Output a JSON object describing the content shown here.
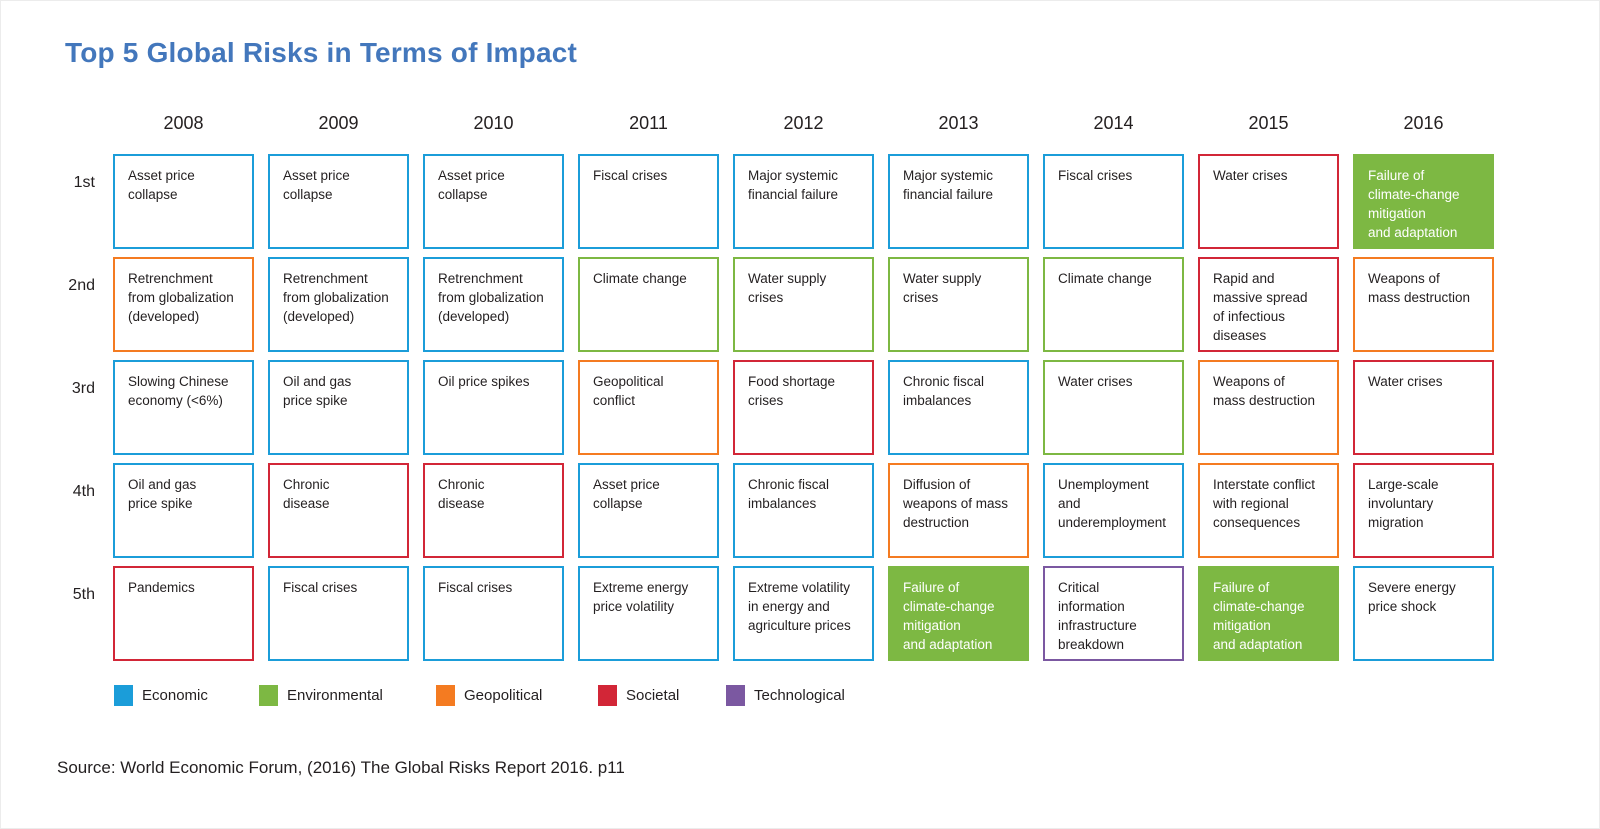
{
  "source": "Source: World Economic Forum, (2016) The Global Risks Report 2016. p11",
  "title_color": "#4377BC",
  "text_color": "#231F20",
  "categories": {
    "economic": {
      "label": "Economic",
      "color": "#1B9DD9"
    },
    "environmental": {
      "label": "Environmental",
      "color": "#7DB843"
    },
    "geopolitical": {
      "label": "Geopolitical",
      "color": "#F47B21"
    },
    "societal": {
      "label": "Societal",
      "color": "#D22637"
    },
    "technological": {
      "label": "Technological",
      "color": "#7B58A1"
    }
  },
  "legend_order": [
    "economic",
    "environmental",
    "geopolitical",
    "societal",
    "technological"
  ],
  "chart_data": {
    "type": "table",
    "title": "Top 5 Global Risks in Terms of Impact",
    "x_categories": [
      "2008",
      "2009",
      "2010",
      "2011",
      "2012",
      "2013",
      "2014",
      "2015",
      "2016"
    ],
    "y_categories": [
      "1st",
      "2nd",
      "3rd",
      "4th",
      "5th"
    ],
    "legend": [
      "Economic",
      "Environmental",
      "Geopolitical",
      "Societal",
      "Technological"
    ],
    "columns": [
      {
        "year": "2008",
        "cells": [
          {
            "text": "Asset price\ncollapse",
            "category": "economic"
          },
          {
            "text": "Retrenchment\nfrom globalization\n(developed)",
            "category": "geopolitical"
          },
          {
            "text": "Slowing Chinese\neconomy (<6%)",
            "category": "economic"
          },
          {
            "text": "Oil and gas\nprice spike",
            "category": "economic"
          },
          {
            "text": "Pandemics",
            "category": "societal"
          }
        ]
      },
      {
        "year": "2009",
        "cells": [
          {
            "text": "Asset price\ncollapse",
            "category": "economic"
          },
          {
            "text": "Retrenchment\nfrom globalization\n(developed)",
            "category": "economic"
          },
          {
            "text": "Oil and gas\nprice spike",
            "category": "economic"
          },
          {
            "text": "Chronic\ndisease",
            "category": "societal"
          },
          {
            "text": "Fiscal crises",
            "category": "economic"
          }
        ]
      },
      {
        "year": "2010",
        "cells": [
          {
            "text": "Asset price\ncollapse",
            "category": "economic"
          },
          {
            "text": "Retrenchment\nfrom globalization\n(developed)",
            "category": "economic"
          },
          {
            "text": "Oil price spikes",
            "category": "economic"
          },
          {
            "text": "Chronic\ndisease",
            "category": "societal"
          },
          {
            "text": "Fiscal crises",
            "category": "economic"
          }
        ]
      },
      {
        "year": "2011",
        "cells": [
          {
            "text": "Fiscal crises",
            "category": "economic"
          },
          {
            "text": "Climate change",
            "category": "environmental"
          },
          {
            "text": "Geopolitical\nconflict",
            "category": "geopolitical"
          },
          {
            "text": "Asset price\ncollapse",
            "category": "economic"
          },
          {
            "text": "Extreme energy\nprice volatility",
            "category": "economic"
          }
        ]
      },
      {
        "year": "2012",
        "cells": [
          {
            "text": "Major systemic\nfinancial failure",
            "category": "economic"
          },
          {
            "text": "Water supply\ncrises",
            "category": "environmental"
          },
          {
            "text": "Food shortage\ncrises",
            "category": "societal"
          },
          {
            "text": "Chronic fiscal\nimbalances",
            "category": "economic"
          },
          {
            "text": "Extreme volatility\nin energy and\nagriculture prices",
            "category": "economic"
          }
        ]
      },
      {
        "year": "2013",
        "cells": [
          {
            "text": "Major systemic\nfinancial failure",
            "category": "economic"
          },
          {
            "text": "Water supply\ncrises",
            "category": "environmental"
          },
          {
            "text": "Chronic fiscal\nimbalances",
            "category": "economic"
          },
          {
            "text": "Diffusion of\nweapons of mass\ndestruction",
            "category": "geopolitical"
          },
          {
            "text": "Failure of\nclimate-change\nmitigation\nand adaptation",
            "category": "environmental",
            "filled": true
          }
        ]
      },
      {
        "year": "2014",
        "cells": [
          {
            "text": "Fiscal crises",
            "category": "economic"
          },
          {
            "text": "Climate change",
            "category": "environmental"
          },
          {
            "text": "Water crises",
            "category": "environmental"
          },
          {
            "text": "Unemployment\nand\nunderemployment",
            "category": "economic"
          },
          {
            "text": "Critical\ninformation\ninfrastructure\nbreakdown",
            "category": "technological"
          }
        ]
      },
      {
        "year": "2015",
        "cells": [
          {
            "text": "Water crises",
            "category": "societal"
          },
          {
            "text": "Rapid and\nmassive spread\nof infectious\ndiseases",
            "category": "societal"
          },
          {
            "text": "Weapons of\nmass destruction",
            "category": "geopolitical"
          },
          {
            "text": "Interstate conflict\nwith regional\nconsequences",
            "category": "geopolitical"
          },
          {
            "text": "Failure of\nclimate-change\nmitigation\nand adaptation",
            "category": "environmental",
            "filled": true
          }
        ]
      },
      {
        "year": "2016",
        "cells": [
          {
            "text": "Failure of\nclimate-change\nmitigation\nand adaptation",
            "category": "environmental",
            "filled": true
          },
          {
            "text": "Weapons of\nmass destruction",
            "category": "geopolitical"
          },
          {
            "text": "Water crises",
            "category": "societal"
          },
          {
            "text": "Large-scale\ninvoluntary\nmigration",
            "category": "societal"
          },
          {
            "text": "Severe energy\nprice shock",
            "category": "economic"
          }
        ]
      }
    ]
  }
}
